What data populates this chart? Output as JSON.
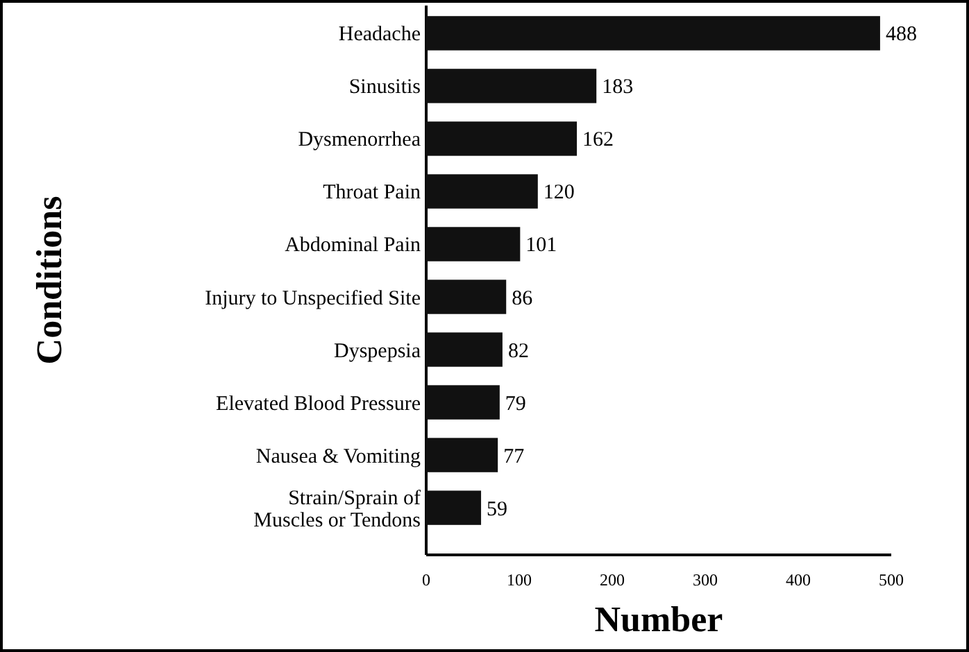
{
  "chart_data": {
    "type": "bar",
    "orientation": "horizontal",
    "xlabel": "Number",
    "ylabel": "Conditions",
    "categories": [
      "Headache",
      "Sinusitis",
      "Dysmenorrhea",
      "Throat Pain",
      "Abdominal Pain",
      "Injury to Unspecified Site",
      "Dyspepsia",
      "Elevated Blood Pressure",
      "Nausea & Vomiting",
      "Strain/Sprain of Muscles or Tendons"
    ],
    "values": [
      488,
      183,
      162,
      120,
      101,
      86,
      82,
      79,
      77,
      59
    ],
    "color": "#111111",
    "xlim": [
      0,
      500
    ],
    "xticks": [
      0,
      100,
      200,
      300,
      400,
      500
    ],
    "data_labels": true,
    "grid": false
  }
}
